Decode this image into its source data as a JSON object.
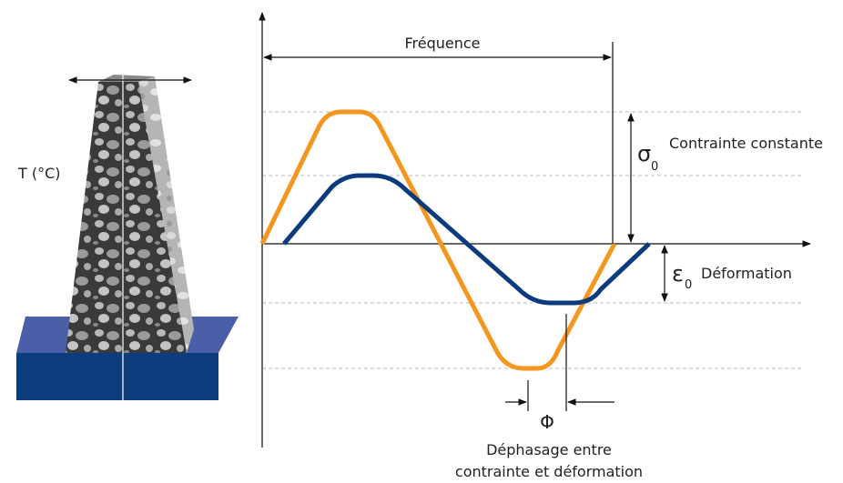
{
  "labels": {
    "temperature": "T (°C)",
    "frequency": "Fréquence",
    "stress_symbol": "σ",
    "stress_subscript": "0",
    "stress": "Contrainte constante",
    "strain_symbol": "ε",
    "strain_subscript": "0",
    "strain": "Déformation",
    "phase_symbol": "Φ",
    "phase_lines": [
      "Déphasage entre",
      "contrainte et déformation"
    ]
  }
}
